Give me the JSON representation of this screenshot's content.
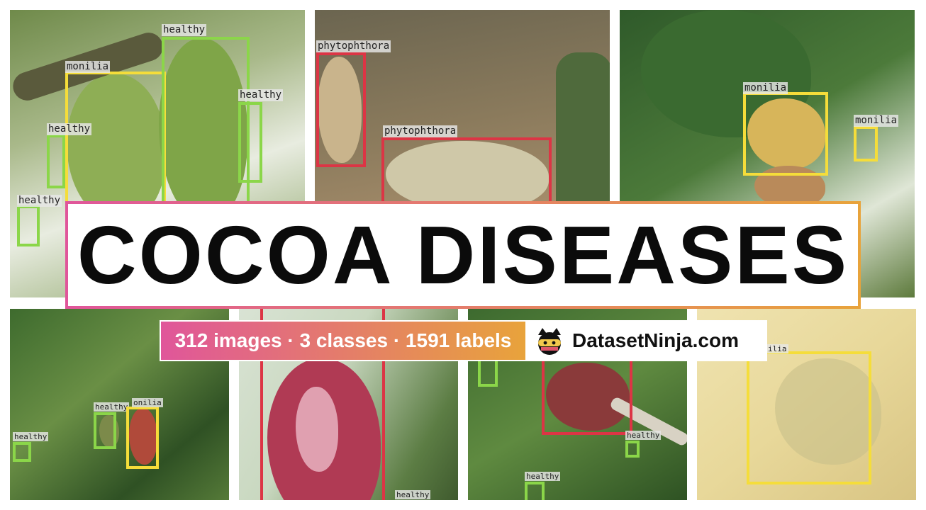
{
  "title": "COCOA DISEASES",
  "stats": "312 images · 3 classes · 1591 labels",
  "brand": {
    "name": "DatasetNinja.com",
    "logo_icon": "ninja-icon"
  },
  "colors": {
    "healthy": "#8bd649",
    "monilia": "#f5dd3a",
    "phytophthora": "#dc3545",
    "gradient_start": "#e0569a",
    "gradient_end": "#e8a33b"
  },
  "labels": {
    "healthy": "healthy",
    "monilia": "monilia",
    "phytophthora": "phytophthora",
    "monilia_cut_a": "onilia",
    "monilia_cut_b": "ilia"
  }
}
